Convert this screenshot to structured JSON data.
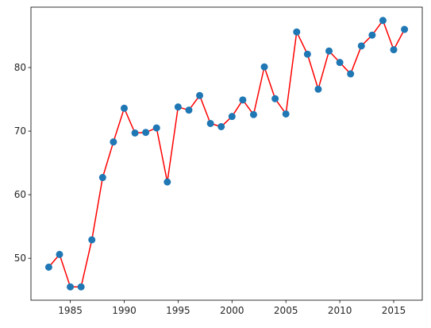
{
  "chart_data": {
    "type": "line",
    "title": "",
    "xlabel": "",
    "ylabel": "",
    "xlim": [
      1981.35,
      2017.65
    ],
    "ylim": [
      43.4,
      89.5
    ],
    "xticks": [
      1985,
      1990,
      1995,
      2000,
      2005,
      2010,
      2015
    ],
    "yticks": [
      50,
      60,
      70,
      80
    ],
    "grid": false,
    "legend": "none",
    "series": [
      {
        "line_color": "#ff0000",
        "marker_color": "#1f77b4",
        "x": [
          1983,
          1984,
          1985,
          1986,
          1987,
          1988,
          1989,
          1990,
          1991,
          1992,
          1993,
          1994,
          1995,
          1996,
          1997,
          1998,
          1999,
          2000,
          2001,
          2002,
          2003,
          2004,
          2005,
          2006,
          2007,
          2008,
          2009,
          2010,
          2011,
          2012,
          2013,
          2014,
          2015,
          2016
        ],
        "y": [
          48.6,
          50.6,
          45.5,
          45.5,
          52.9,
          62.7,
          68.3,
          73.6,
          69.7,
          69.8,
          70.5,
          62.0,
          73.8,
          73.3,
          75.6,
          71.2,
          70.7,
          72.3,
          74.9,
          72.6,
          80.1,
          75.1,
          72.7,
          85.6,
          82.1,
          76.6,
          82.6,
          80.8,
          79.0,
          83.4,
          85.1,
          87.4,
          82.8,
          86.0
        ]
      }
    ]
  }
}
